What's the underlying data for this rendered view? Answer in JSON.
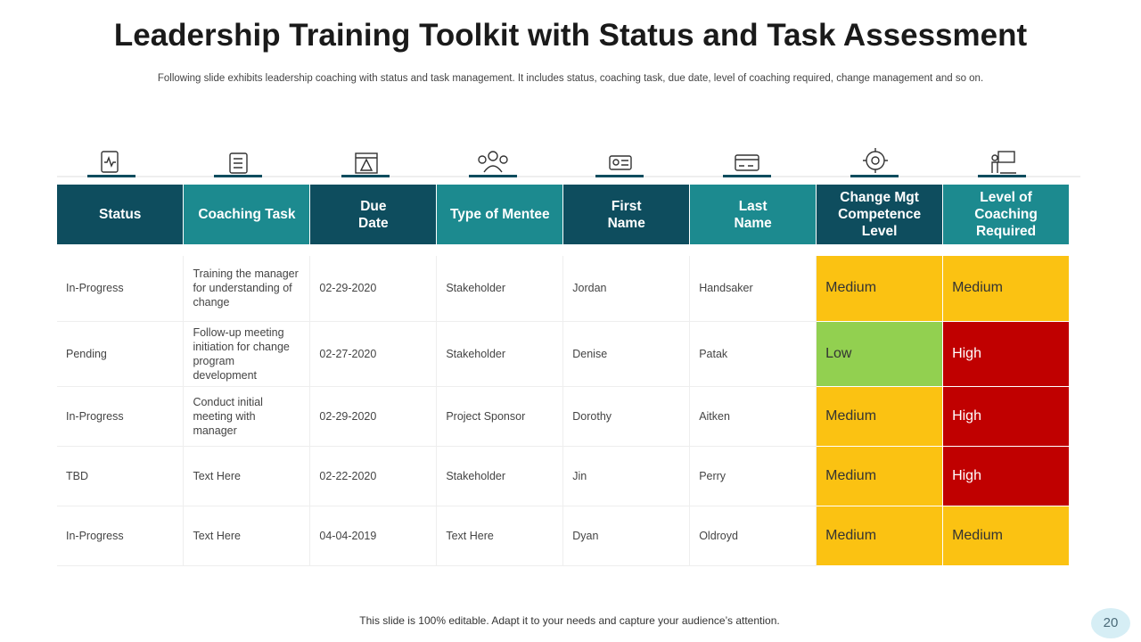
{
  "header": {
    "title": "Leadership Training Toolkit with Status and Task Assessment",
    "subtitle": "Following slide exhibits leadership coaching with status and task management. It includes status, coaching task, due date, level of coaching required, change management and so on."
  },
  "table": {
    "header_colors": [
      "#0e4d5e",
      "#1c8a8f",
      "#0e4d5e",
      "#1c8a8f",
      "#0e4d5e",
      "#1c8a8f",
      "#0e4d5e",
      "#1c8a8f"
    ],
    "columns": [
      "Status",
      "Coaching  Task",
      "Due\nDate",
      "Type of Mentee",
      "First\nName",
      "Last\nName",
      "Change Mgt\nCompetence\nLevel",
      "Level of\nCoaching\nRequired"
    ],
    "rows": [
      [
        "In-Progress",
        "Training the manager for understanding of change",
        "02-29-2020",
        "Stakeholder",
        "Jordan",
        "Handsaker",
        {
          "text": "Medium",
          "color": "#fbc212",
          "text_color": "#333333"
        },
        {
          "text": "Medium",
          "color": "#fbc212",
          "text_color": "#333333"
        }
      ],
      [
        "Pending",
        "Follow-up meeting initiation for change program development",
        "02-27-2020",
        "Stakeholder",
        "Denise",
        "Patak",
        {
          "text": "Low",
          "color": "#92d050",
          "text_color": "#333333"
        },
        {
          "text": "High",
          "color": "#c00000",
          "text_color": "#ffffff"
        }
      ],
      [
        "In-Progress",
        "Conduct initial meeting with manager",
        "02-29-2020",
        "Project Sponsor",
        "Dorothy",
        "Aitken",
        {
          "text": "Medium",
          "color": "#fbc212",
          "text_color": "#333333"
        },
        {
          "text": "High",
          "color": "#c00000",
          "text_color": "#ffffff"
        }
      ],
      [
        "TBD",
        "Text Here",
        "02-22-2020",
        "Stakeholder",
        "Jin",
        "Perry",
        {
          "text": "Medium",
          "color": "#fbc212",
          "text_color": "#333333"
        },
        {
          "text": "High",
          "color": "#c00000",
          "text_color": "#ffffff"
        }
      ],
      [
        "In-Progress",
        "Text Here",
        "04-04-2019",
        "Text Here",
        "Dyan",
        "Oldroyd",
        {
          "text": "Medium",
          "color": "#fbc212",
          "text_color": "#333333"
        },
        {
          "text": "Medium",
          "color": "#fbc212",
          "text_color": "#333333"
        }
      ]
    ]
  },
  "footer": {
    "note": "This slide is 100% editable. Adapt it to your needs and capture your audience’s attention.",
    "page_number": "20"
  }
}
